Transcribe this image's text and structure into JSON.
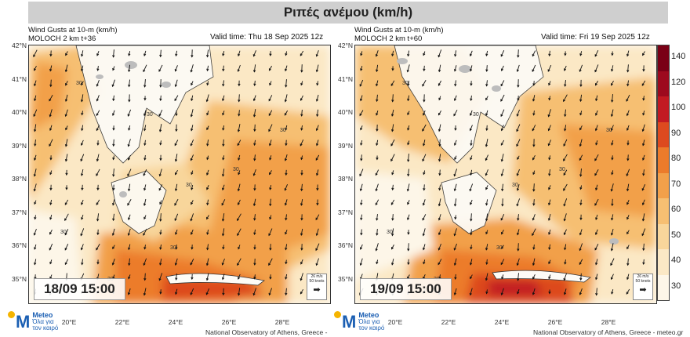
{
  "title": "Ριπές ανέμου (km/h)",
  "panels": [
    {
      "line1": "Wind Gusts at 10-m (km/h)",
      "line2": "MOLOCH 2 km t+36",
      "valid": "Valid time: Thu 18 Sep 2025 12z",
      "date": "18/09 15:00"
    },
    {
      "line1": "Wind Gusts at 10-m (km/h)",
      "line2": "MOLOCH 2 km t+60",
      "valid": "Valid time: Fri 19 Sep 2025 12z",
      "date": "19/09 15:00"
    }
  ],
  "lat_labels": [
    "42°N",
    "41°N",
    "40°N",
    "39°N",
    "38°N",
    "37°N",
    "36°N",
    "35°N"
  ],
  "lon_labels": [
    "20°E",
    "22°E",
    "24°E",
    "26°E",
    "28°E"
  ],
  "colorbar": {
    "levels": [
      "140",
      "120",
      "100",
      "90",
      "80",
      "70",
      "60",
      "50",
      "40",
      "30"
    ],
    "colors": [
      "#7a0016",
      "#9d0a1e",
      "#c21a22",
      "#dd4a1f",
      "#ec7b2b",
      "#f2a04a",
      "#f6bf72",
      "#f8d69b",
      "#fbe8c5",
      "#fdf6e8"
    ]
  },
  "scale_box": {
    "line1": "26 m/s",
    "line2": "50 knots"
  },
  "contour_label": "30",
  "logo": {
    "name": "Meteo",
    "sub1": "Όλα για",
    "sub2": "τον καιρό"
  },
  "footer_left": "National Observatory of Athens, Greece -",
  "footer_right": "National Observatory of Athens, Greece - meteo.gr"
}
